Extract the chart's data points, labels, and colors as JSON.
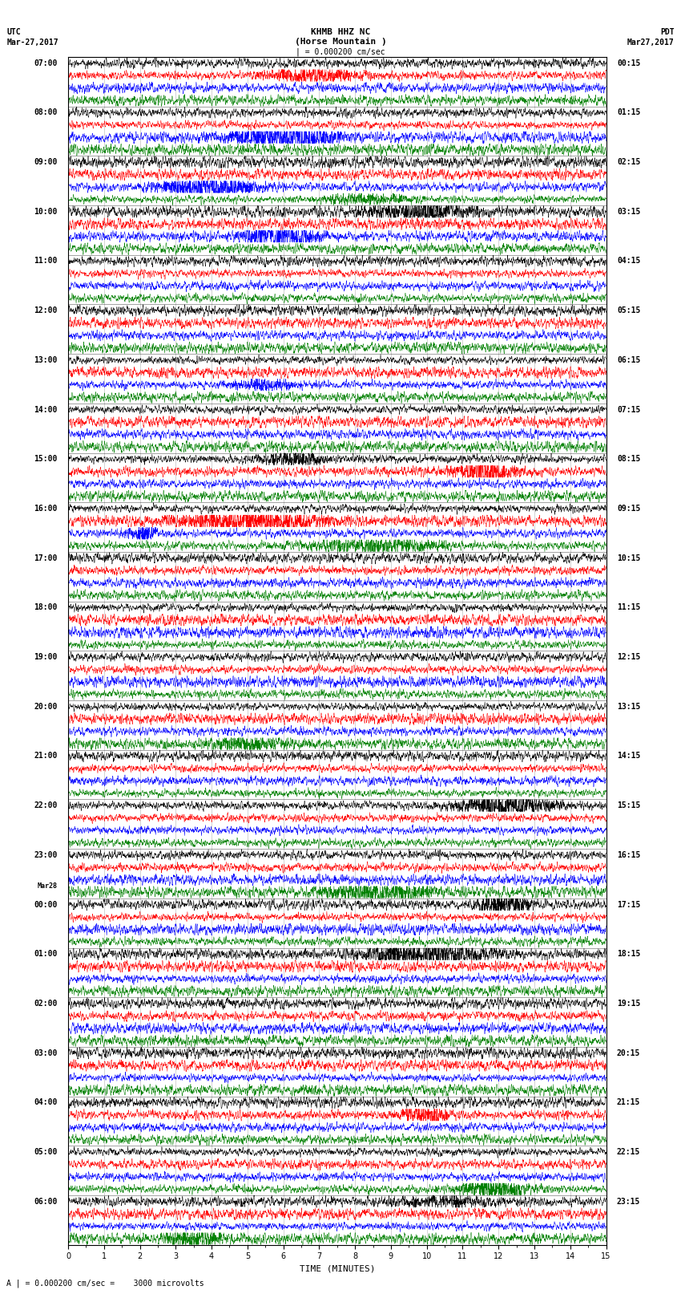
{
  "title_line1": "KHMB HHZ NC",
  "title_line2": "(Horse Mountain )",
  "title_line3": "| = 0.000200 cm/sec",
  "left_header_line1": "UTC",
  "left_header_line2": "Mar-27,2017",
  "right_header_line1": "PDT",
  "right_header_line2": "Mar27,2017",
  "xlabel": "TIME (MINUTES)",
  "footnote": "A | = 0.000200 cm/sec =    3000 microvolts",
  "utc_labels": [
    [
      "07:00",
      0
    ],
    [
      "08:00",
      4
    ],
    [
      "09:00",
      8
    ],
    [
      "10:00",
      12
    ],
    [
      "11:00",
      16
    ],
    [
      "12:00",
      20
    ],
    [
      "13:00",
      24
    ],
    [
      "14:00",
      28
    ],
    [
      "15:00",
      32
    ],
    [
      "16:00",
      36
    ],
    [
      "17:00",
      40
    ],
    [
      "18:00",
      44
    ],
    [
      "19:00",
      48
    ],
    [
      "20:00",
      52
    ],
    [
      "21:00",
      56
    ],
    [
      "22:00",
      60
    ],
    [
      "23:00",
      64
    ],
    [
      "Mar28",
      67
    ],
    [
      "00:00",
      68
    ],
    [
      "01:00",
      72
    ],
    [
      "02:00",
      76
    ],
    [
      "03:00",
      80
    ],
    [
      "04:00",
      84
    ],
    [
      "05:00",
      88
    ],
    [
      "06:00",
      92
    ]
  ],
  "pdt_labels": [
    [
      "00:15",
      0
    ],
    [
      "01:15",
      4
    ],
    [
      "02:15",
      8
    ],
    [
      "03:15",
      12
    ],
    [
      "04:15",
      16
    ],
    [
      "05:15",
      20
    ],
    [
      "06:15",
      24
    ],
    [
      "07:15",
      28
    ],
    [
      "08:15",
      32
    ],
    [
      "09:15",
      36
    ],
    [
      "10:15",
      40
    ],
    [
      "11:15",
      44
    ],
    [
      "12:15",
      48
    ],
    [
      "13:15",
      52
    ],
    [
      "14:15",
      56
    ],
    [
      "15:15",
      60
    ],
    [
      "16:15",
      64
    ],
    [
      "17:15",
      68
    ],
    [
      "18:15",
      72
    ],
    [
      "19:15",
      76
    ],
    [
      "20:15",
      80
    ],
    [
      "21:15",
      84
    ],
    [
      "22:15",
      88
    ],
    [
      "23:15",
      92
    ]
  ],
  "trace_colors": [
    "black",
    "red",
    "blue",
    "green"
  ],
  "n_rows": 96,
  "n_samples": 3000,
  "background_color": "white",
  "xlim": [
    0,
    15
  ],
  "xticks": [
    0,
    1,
    2,
    3,
    4,
    5,
    6,
    7,
    8,
    9,
    10,
    11,
    12,
    13,
    14,
    15
  ],
  "figure_width": 8.5,
  "figure_height": 16.13,
  "dpi": 100,
  "font_size": 7,
  "title_font_size": 8,
  "label_font_size": 6
}
